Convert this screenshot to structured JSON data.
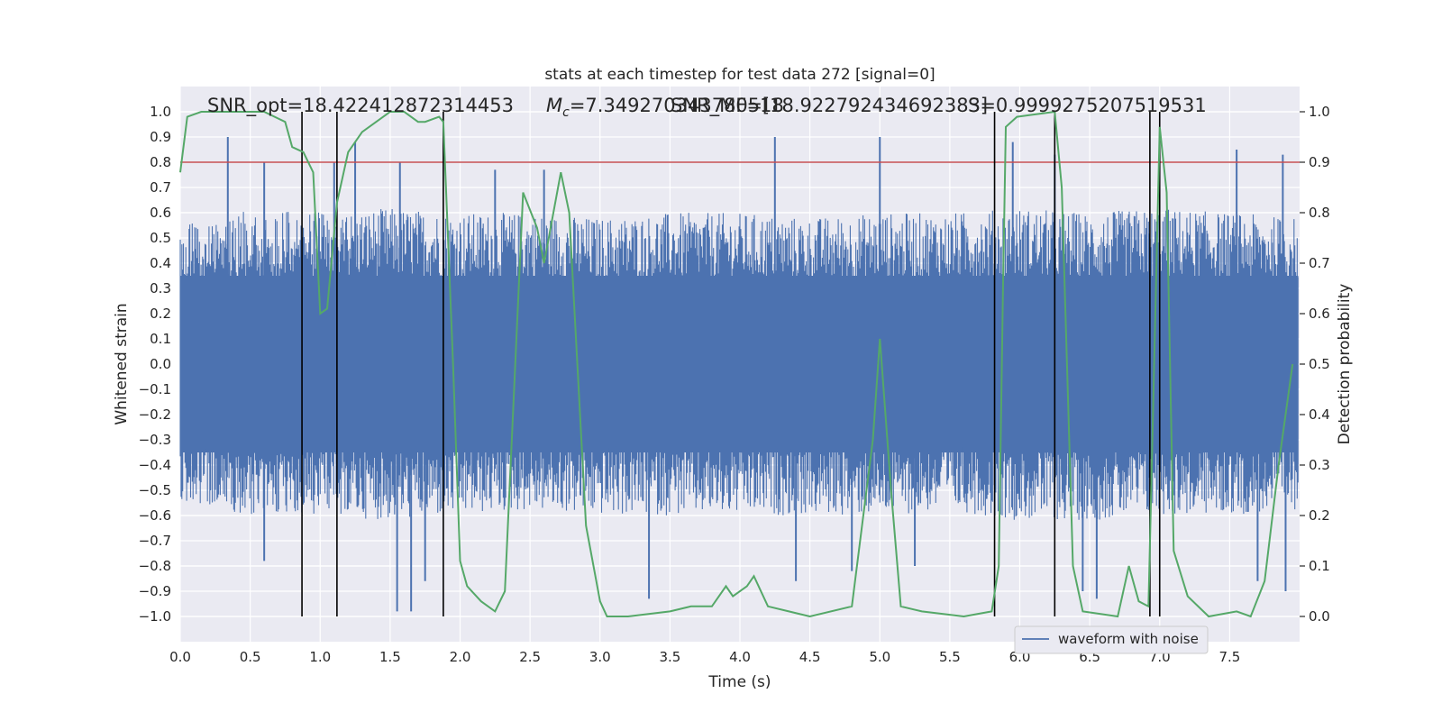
{
  "chart_data": {
    "type": "line",
    "title": "stats at each timestep for test data 272 [signal=0]",
    "xlabel": "Time (s)",
    "ylabel_left": "Whitened strain",
    "ylabel_right": "Detection probability",
    "xlim": [
      0.0,
      8.0
    ],
    "ylim_left": [
      -1.1,
      1.1
    ],
    "ylim_right": [
      -0.05,
      1.05
    ],
    "grid": true,
    "legend_position": "bottom-right",
    "x_ticks": [
      0.0,
      0.5,
      1.0,
      1.5,
      2.0,
      2.5,
      3.0,
      3.5,
      4.0,
      4.5,
      5.0,
      5.5,
      6.0,
      6.5,
      7.0,
      7.5
    ],
    "x_tick_labels": [
      "0.0",
      "0.5",
      "1.0",
      "1.5",
      "2.0",
      "2.5",
      "3.0",
      "3.5",
      "4.0",
      "4.5",
      "5.0",
      "5.5",
      "6.0",
      "6.5",
      "7.0",
      "7.5"
    ],
    "y_ticks_left": [
      1.0,
      0.9,
      0.8,
      0.7,
      0.6,
      0.5,
      0.4,
      0.3,
      0.2,
      0.1,
      0.0,
      -0.1,
      -0.2,
      -0.3,
      -0.4,
      -0.5,
      -0.6,
      -0.7,
      -0.8,
      -0.9,
      -1.0
    ],
    "y_tick_labels_left": [
      "1.0",
      "0.9",
      "0.8",
      "0.7",
      "0.6",
      "0.5",
      "0.4",
      "0.3",
      "0.2",
      "0.1",
      "0.0",
      "−0.1",
      "−0.2",
      "−0.3",
      "−0.4",
      "−0.5",
      "−0.6",
      "−0.7",
      "−0.8",
      "−0.9",
      "−1.0"
    ],
    "y_ticks_right": [
      1.0,
      0.9,
      0.8,
      0.7,
      0.6,
      0.5,
      0.4,
      0.3,
      0.2,
      0.1,
      0.0
    ],
    "y_tick_labels_right": [
      "1.0",
      "0.9",
      "0.8",
      "0.7",
      "0.6",
      "0.5",
      "0.4",
      "0.3",
      "0.2",
      "0.1",
      "0.0"
    ],
    "annotations": {
      "snr_opt": "SNR_opt=18.422412872314453",
      "mc_prefix": "M",
      "mc_subscript": "c",
      "mc_value": "=7.349270343780518",
      "snr_mf": "SNR_MF=[18.922792434692383]",
      "s_value": "S=0.9999275207519531"
    },
    "series": [
      {
        "name": "waveform with noise",
        "color": "#4c72b0",
        "kind": "noise",
        "envelope_upper": [
          {
            "x": 0.0,
            "y": 0.55
          },
          {
            "x": 0.5,
            "y": 0.62
          },
          {
            "x": 1.0,
            "y": 0.6
          },
          {
            "x": 1.5,
            "y": 0.62
          },
          {
            "x": 2.0,
            "y": 0.6
          },
          {
            "x": 2.5,
            "y": 0.6
          },
          {
            "x": 3.0,
            "y": 0.58
          },
          {
            "x": 3.5,
            "y": 0.6
          },
          {
            "x": 4.0,
            "y": 0.6
          },
          {
            "x": 4.5,
            "y": 0.58
          },
          {
            "x": 5.0,
            "y": 0.6
          },
          {
            "x": 5.5,
            "y": 0.6
          },
          {
            "x": 6.0,
            "y": 0.62
          },
          {
            "x": 6.5,
            "y": 0.6
          },
          {
            "x": 7.0,
            "y": 0.62
          },
          {
            "x": 7.5,
            "y": 0.6
          },
          {
            "x": 8.0,
            "y": 0.58
          }
        ],
        "envelope_lower": [
          {
            "x": 0.0,
            "y": -0.55
          },
          {
            "x": 0.5,
            "y": -0.6
          },
          {
            "x": 1.0,
            "y": -0.6
          },
          {
            "x": 1.5,
            "y": -0.62
          },
          {
            "x": 2.0,
            "y": -0.6
          },
          {
            "x": 2.5,
            "y": -0.58
          },
          {
            "x": 3.0,
            "y": -0.6
          },
          {
            "x": 3.5,
            "y": -0.6
          },
          {
            "x": 4.0,
            "y": -0.6
          },
          {
            "x": 4.5,
            "y": -0.6
          },
          {
            "x": 5.0,
            "y": -0.6
          },
          {
            "x": 5.5,
            "y": -0.58
          },
          {
            "x": 6.0,
            "y": -0.62
          },
          {
            "x": 6.5,
            "y": -0.62
          },
          {
            "x": 7.0,
            "y": -0.6
          },
          {
            "x": 7.5,
            "y": -0.6
          },
          {
            "x": 8.0,
            "y": -0.58
          }
        ],
        "spikes_up": [
          {
            "x": 0.34,
            "y": 0.9
          },
          {
            "x": 0.6,
            "y": 0.8
          },
          {
            "x": 1.1,
            "y": 0.8
          },
          {
            "x": 1.25,
            "y": 0.88
          },
          {
            "x": 1.57,
            "y": 0.8
          },
          {
            "x": 2.25,
            "y": 0.77
          },
          {
            "x": 2.6,
            "y": 0.77
          },
          {
            "x": 4.25,
            "y": 0.9
          },
          {
            "x": 5.0,
            "y": 0.9
          },
          {
            "x": 5.95,
            "y": 0.88
          },
          {
            "x": 6.25,
            "y": 0.83
          },
          {
            "x": 7.55,
            "y": 0.85
          },
          {
            "x": 7.88,
            "y": 0.83
          }
        ],
        "spikes_down": [
          {
            "x": 0.6,
            "y": -0.78
          },
          {
            "x": 1.55,
            "y": -0.98
          },
          {
            "x": 1.65,
            "y": -0.98
          },
          {
            "x": 1.75,
            "y": -0.86
          },
          {
            "x": 3.35,
            "y": -0.93
          },
          {
            "x": 4.4,
            "y": -0.86
          },
          {
            "x": 4.8,
            "y": -0.82
          },
          {
            "x": 5.25,
            "y": -0.8
          },
          {
            "x": 6.45,
            "y": -0.9
          },
          {
            "x": 6.55,
            "y": -0.93
          },
          {
            "x": 7.7,
            "y": -0.86
          },
          {
            "x": 7.9,
            "y": -0.9
          }
        ]
      },
      {
        "name": "",
        "color": "#55a868",
        "axis": "right",
        "points": [
          {
            "x": 0.0,
            "y": 0.88
          },
          {
            "x": 0.05,
            "y": 0.99
          },
          {
            "x": 0.15,
            "y": 1.0
          },
          {
            "x": 0.6,
            "y": 1.0
          },
          {
            "x": 0.75,
            "y": 0.98
          },
          {
            "x": 0.8,
            "y": 0.93
          },
          {
            "x": 0.88,
            "y": 0.92
          },
          {
            "x": 0.95,
            "y": 0.88
          },
          {
            "x": 1.0,
            "y": 0.6
          },
          {
            "x": 1.05,
            "y": 0.61
          },
          {
            "x": 1.12,
            "y": 0.82
          },
          {
            "x": 1.2,
            "y": 0.92
          },
          {
            "x": 1.3,
            "y": 0.96
          },
          {
            "x": 1.4,
            "y": 0.98
          },
          {
            "x": 1.5,
            "y": 1.0
          },
          {
            "x": 1.6,
            "y": 1.0
          },
          {
            "x": 1.7,
            "y": 0.98
          },
          {
            "x": 1.75,
            "y": 0.98
          },
          {
            "x": 1.85,
            "y": 0.99
          },
          {
            "x": 1.88,
            "y": 0.98
          },
          {
            "x": 1.95,
            "y": 0.5
          },
          {
            "x": 2.0,
            "y": 0.11
          },
          {
            "x": 2.05,
            "y": 0.06
          },
          {
            "x": 2.15,
            "y": 0.03
          },
          {
            "x": 2.25,
            "y": 0.01
          },
          {
            "x": 2.32,
            "y": 0.05
          },
          {
            "x": 2.45,
            "y": 0.84
          },
          {
            "x": 2.55,
            "y": 0.77
          },
          {
            "x": 2.6,
            "y": 0.7
          },
          {
            "x": 2.72,
            "y": 0.88
          },
          {
            "x": 2.78,
            "y": 0.8
          },
          {
            "x": 2.9,
            "y": 0.18
          },
          {
            "x": 3.0,
            "y": 0.03
          },
          {
            "x": 3.05,
            "y": 0.0
          },
          {
            "x": 3.2,
            "y": 0.0
          },
          {
            "x": 3.5,
            "y": 0.01
          },
          {
            "x": 3.65,
            "y": 0.02
          },
          {
            "x": 3.8,
            "y": 0.02
          },
          {
            "x": 3.9,
            "y": 0.06
          },
          {
            "x": 3.95,
            "y": 0.04
          },
          {
            "x": 4.05,
            "y": 0.06
          },
          {
            "x": 4.1,
            "y": 0.08
          },
          {
            "x": 4.2,
            "y": 0.02
          },
          {
            "x": 4.35,
            "y": 0.01
          },
          {
            "x": 4.5,
            "y": 0.0
          },
          {
            "x": 4.8,
            "y": 0.02
          },
          {
            "x": 4.95,
            "y": 0.35
          },
          {
            "x": 5.0,
            "y": 0.55
          },
          {
            "x": 5.08,
            "y": 0.25
          },
          {
            "x": 5.15,
            "y": 0.02
          },
          {
            "x": 5.3,
            "y": 0.01
          },
          {
            "x": 5.6,
            "y": 0.0
          },
          {
            "x": 5.8,
            "y": 0.01
          },
          {
            "x": 5.85,
            "y": 0.1
          },
          {
            "x": 5.88,
            "y": 0.65
          },
          {
            "x": 5.9,
            "y": 0.97
          },
          {
            "x": 5.98,
            "y": 0.99
          },
          {
            "x": 6.25,
            "y": 1.0
          },
          {
            "x": 6.3,
            "y": 0.85
          },
          {
            "x": 6.38,
            "y": 0.1
          },
          {
            "x": 6.45,
            "y": 0.01
          },
          {
            "x": 6.7,
            "y": 0.0
          },
          {
            "x": 6.78,
            "y": 0.1
          },
          {
            "x": 6.85,
            "y": 0.03
          },
          {
            "x": 6.92,
            "y": 0.02
          },
          {
            "x": 7.0,
            "y": 0.97
          },
          {
            "x": 7.05,
            "y": 0.84
          },
          {
            "x": 7.1,
            "y": 0.13
          },
          {
            "x": 7.2,
            "y": 0.04
          },
          {
            "x": 7.35,
            "y": 0.0
          },
          {
            "x": 7.55,
            "y": 0.01
          },
          {
            "x": 7.65,
            "y": 0.0
          },
          {
            "x": 7.75,
            "y": 0.07
          },
          {
            "x": 7.85,
            "y": 0.3
          },
          {
            "x": 7.95,
            "y": 0.5
          }
        ]
      }
    ],
    "threshold": {
      "value": 0.9,
      "axis": "right",
      "color": "#c44e52"
    },
    "vlines": [
      0.87,
      1.12,
      1.88,
      5.82,
      6.25,
      6.93,
      7.0
    ],
    "vline_range_right": [
      0.0,
      1.0
    ]
  }
}
